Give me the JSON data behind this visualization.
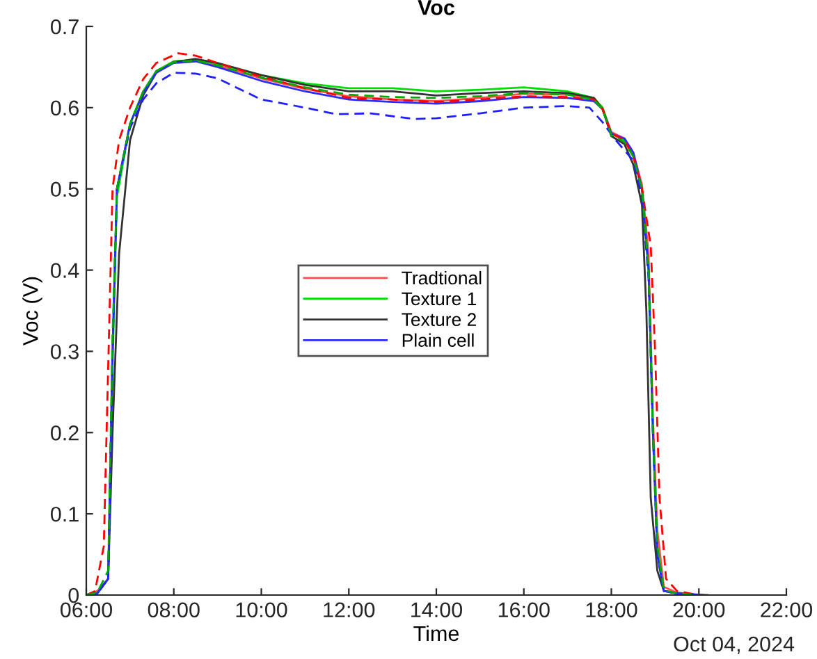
{
  "chart_data": {
    "type": "line",
    "title": "Voc",
    "xlabel": "Time",
    "ylabel": "Voc (V)",
    "annotations": [
      "Oct 04, 2024"
    ],
    "xlim": [
      6,
      22
    ],
    "xticks": [
      {
        "value": 6,
        "label": "06:00"
      },
      {
        "value": 8,
        "label": "08:00"
      },
      {
        "value": 10,
        "label": "10:00"
      },
      {
        "value": 12,
        "label": "12:00"
      },
      {
        "value": 14,
        "label": "14:00"
      },
      {
        "value": 16,
        "label": "16:00"
      },
      {
        "value": 18,
        "label": "18:00"
      },
      {
        "value": 20,
        "label": "20:00"
      },
      {
        "value": 22,
        "label": "22:00"
      }
    ],
    "ylim": [
      0,
      0.7
    ],
    "yticks": [
      0,
      0.1,
      0.2,
      0.3,
      0.4,
      0.5,
      0.6,
      0.7
    ],
    "grid": false,
    "legend": "center left",
    "marker": "none",
    "series": [
      {
        "name": "Tradtional",
        "color": "#ff4d4d",
        "line_style": "solid",
        "x": [
          6.0,
          6.25,
          6.5,
          6.6,
          6.7,
          7.0,
          7.3,
          7.6,
          8.0,
          8.5,
          9.0,
          10,
          11,
          12,
          13,
          14,
          15,
          16,
          17,
          17.6,
          17.8,
          18.0,
          18.3,
          18.5,
          18.7,
          18.85,
          18.95,
          19.05,
          19.2,
          19.5,
          20.0
        ],
        "values": [
          0,
          0.005,
          0.02,
          0.3,
          0.5,
          0.58,
          0.62,
          0.645,
          0.657,
          0.658,
          0.652,
          0.636,
          0.623,
          0.614,
          0.61,
          0.608,
          0.612,
          0.617,
          0.616,
          0.612,
          0.6,
          0.57,
          0.562,
          0.545,
          0.505,
          0.42,
          0.22,
          0.08,
          0.01,
          0.003,
          0
        ]
      },
      {
        "name": "Texture 1",
        "color": "#00dd00",
        "line_style": "solid",
        "x": [
          6.0,
          6.25,
          6.5,
          6.6,
          6.7,
          7.0,
          7.3,
          7.6,
          8.0,
          8.5,
          9.0,
          10,
          11,
          12,
          13,
          14,
          15,
          16,
          17,
          17.6,
          17.8,
          18.0,
          18.3,
          18.5,
          18.7,
          18.85,
          18.95,
          19.05,
          19.2,
          19.5,
          20.0
        ],
        "values": [
          0,
          0.002,
          0.02,
          0.28,
          0.49,
          0.58,
          0.62,
          0.645,
          0.657,
          0.659,
          0.654,
          0.64,
          0.63,
          0.624,
          0.624,
          0.62,
          0.622,
          0.625,
          0.62,
          0.612,
          0.6,
          0.568,
          0.56,
          0.54,
          0.5,
          0.4,
          0.2,
          0.06,
          0.005,
          0.002,
          0
        ]
      },
      {
        "name": "Texture 2",
        "color": "#333333",
        "line_style": "solid",
        "x": [
          6.0,
          6.25,
          6.5,
          6.6,
          6.75,
          7.0,
          7.3,
          7.6,
          8.0,
          8.5,
          9.0,
          10,
          11,
          12,
          13,
          14,
          15,
          16,
          17,
          17.6,
          17.8,
          18.0,
          18.3,
          18.5,
          18.7,
          18.8,
          18.9,
          19.05,
          19.2,
          19.5,
          20.2
        ],
        "values": [
          0,
          0.002,
          0.02,
          0.2,
          0.42,
          0.56,
          0.615,
          0.643,
          0.656,
          0.66,
          0.655,
          0.64,
          0.628,
          0.62,
          0.62,
          0.615,
          0.618,
          0.62,
          0.618,
          0.612,
          0.598,
          0.565,
          0.555,
          0.53,
          0.48,
          0.35,
          0.12,
          0.03,
          0.005,
          0.002,
          0
        ]
      },
      {
        "name": "Plain cell",
        "color": "#2b2bff",
        "line_style": "solid",
        "x": [
          6.0,
          6.25,
          6.5,
          6.6,
          6.7,
          7.0,
          7.3,
          7.6,
          8.0,
          8.5,
          9.0,
          10,
          11,
          12,
          13,
          14,
          15,
          16,
          17,
          17.6,
          17.8,
          18.0,
          18.3,
          18.5,
          18.7,
          18.85,
          18.95,
          19.05,
          19.2,
          19.5,
          20.0
        ],
        "values": [
          0,
          0.002,
          0.02,
          0.3,
          0.5,
          0.58,
          0.618,
          0.643,
          0.655,
          0.657,
          0.65,
          0.633,
          0.62,
          0.61,
          0.607,
          0.605,
          0.608,
          0.613,
          0.612,
          0.608,
          0.598,
          0.568,
          0.562,
          0.545,
          0.5,
          0.4,
          0.2,
          0.05,
          0.005,
          0.002,
          0
        ]
      },
      {
        "color": "#ff0000",
        "line_style": "dashed",
        "x": [
          6.0,
          6.2,
          6.4,
          6.6,
          6.75,
          7.0,
          7.3,
          7.6,
          8.1,
          8.5,
          9.0,
          10,
          11,
          12,
          13,
          14,
          15,
          16,
          17,
          17.6,
          17.8,
          18.0,
          18.3,
          18.5,
          18.7,
          18.9,
          19.0,
          19.1,
          19.25,
          19.5,
          20.0
        ],
        "values": [
          0,
          0.005,
          0.06,
          0.5,
          0.56,
          0.6,
          0.635,
          0.655,
          0.667,
          0.664,
          0.655,
          0.638,
          0.624,
          0.612,
          0.61,
          0.607,
          0.61,
          0.614,
          0.613,
          0.61,
          0.598,
          0.568,
          0.56,
          0.54,
          0.5,
          0.43,
          0.3,
          0.12,
          0.02,
          0.005,
          0
        ]
      },
      {
        "color": "#2020ff",
        "line_style": "dashed",
        "x": [
          6.0,
          6.25,
          6.5,
          6.6,
          6.7,
          7.0,
          7.3,
          7.6,
          8.0,
          8.5,
          9.0,
          10,
          11,
          11.7,
          12.5,
          13.5,
          14,
          15,
          16,
          17,
          17.5,
          17.8,
          18.1,
          18.5,
          18.7,
          18.85,
          18.95,
          19.05,
          19.2,
          19.5,
          20.0
        ],
        "values": [
          0,
          0.002,
          0.02,
          0.3,
          0.5,
          0.575,
          0.61,
          0.63,
          0.643,
          0.642,
          0.636,
          0.61,
          0.6,
          0.592,
          0.593,
          0.586,
          0.587,
          0.593,
          0.6,
          0.602,
          0.6,
          0.582,
          0.56,
          0.535,
          0.49,
          0.39,
          0.2,
          0.05,
          0.005,
          0.002,
          0
        ]
      },
      {
        "color": "#00aa00",
        "line_style": "dashed",
        "x": [
          6.0,
          6.25,
          6.5,
          6.6,
          6.7,
          7.0,
          7.3,
          7.6,
          8.0,
          8.5,
          9.0,
          10,
          11,
          12,
          13,
          14,
          15,
          16,
          17,
          17.6,
          17.8,
          18.0,
          18.3,
          18.5,
          18.7,
          18.85,
          18.95,
          19.05,
          19.2,
          19.5,
          20.0
        ],
        "values": [
          0,
          0.003,
          0.03,
          0.32,
          0.5,
          0.58,
          0.62,
          0.645,
          0.656,
          0.658,
          0.652,
          0.637,
          0.625,
          0.616,
          0.613,
          0.612,
          0.614,
          0.618,
          0.616,
          0.61,
          0.598,
          0.566,
          0.558,
          0.54,
          0.5,
          0.4,
          0.2,
          0.06,
          0.006,
          0.002,
          0
        ]
      }
    ]
  }
}
